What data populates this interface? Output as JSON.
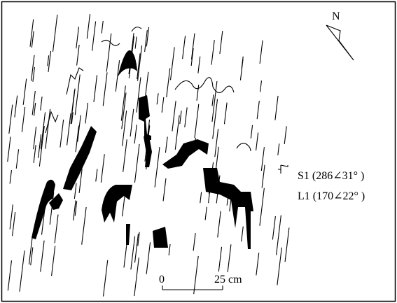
{
  "north": "N",
  "legend": [
    "S1 (286∠31° )",
    "L1 (170∠22° )"
  ],
  "scale": {
    "start": "0",
    "end": "25 cm"
  }
}
